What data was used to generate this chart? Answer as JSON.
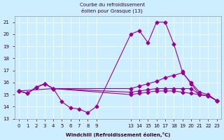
{
  "title": "Courbe du refroidissement éolien pour Grasque (13)",
  "xlabel": "Windchill (Refroidissement éolien,°C)",
  "ylabel": "",
  "bg_color": "#cceeff",
  "line_color": "#990099",
  "ylim": [
    13,
    21.5
  ],
  "yticks": [
    13,
    14,
    15,
    16,
    17,
    18,
    19,
    20,
    21
  ],
  "xticks_left": [
    0,
    1,
    2,
    3,
    4,
    5,
    6,
    7,
    8,
    9
  ],
  "xticks_right": [
    13,
    14,
    15,
    16,
    17,
    18,
    19,
    20,
    21,
    22,
    23
  ],
  "lines": [
    {
      "x": [
        0,
        1,
        2,
        3,
        4,
        5,
        6,
        7,
        8,
        9,
        13,
        14,
        15,
        16,
        17,
        18,
        19,
        20,
        21,
        22,
        23
      ],
      "y": [
        15.3,
        15.1,
        15.6,
        15.9,
        15.5,
        14.4,
        13.9,
        13.8,
        13.5,
        14.0,
        20.0,
        20.3,
        19.3,
        21.0,
        21.0,
        19.2,
        16.9,
        15.9,
        15.0,
        14.9,
        14.5
      ]
    },
    {
      "x": [
        0,
        1,
        2,
        3,
        4,
        13,
        14,
        15,
        16,
        17,
        18,
        19,
        20,
        21,
        22,
        23
      ],
      "y": [
        15.3,
        15.1,
        15.6,
        15.9,
        15.5,
        15.5,
        15.7,
        15.9,
        16.1,
        16.4,
        16.6,
        16.8,
        16.0,
        15.2,
        15.0,
        14.5
      ]
    },
    {
      "x": [
        0,
        1,
        2,
        3,
        4,
        13,
        14,
        15,
        16,
        17,
        18,
        19,
        20,
        21,
        22,
        23
      ],
      "y": [
        15.3,
        15.1,
        15.6,
        15.9,
        15.5,
        15.2,
        15.3,
        15.4,
        15.5,
        15.5,
        15.5,
        15.5,
        15.5,
        15.0,
        14.9,
        14.5
      ]
    },
    {
      "x": [
        0,
        4,
        13,
        14,
        15,
        16,
        17,
        18,
        19,
        20,
        21,
        22,
        23
      ],
      "y": [
        15.3,
        15.5,
        15.0,
        15.1,
        15.2,
        15.3,
        15.3,
        15.3,
        15.2,
        15.1,
        15.0,
        14.9,
        14.5
      ]
    }
  ]
}
